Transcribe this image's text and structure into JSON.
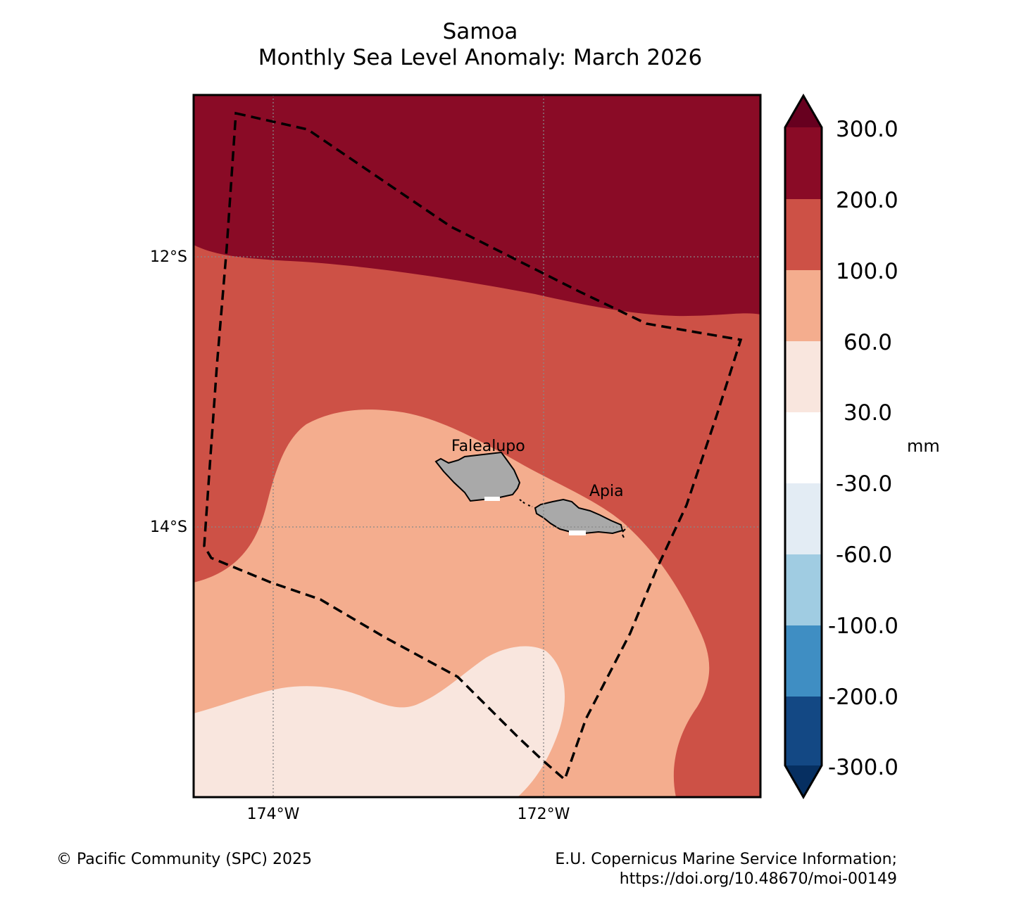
{
  "title": {
    "line1": "Samoa",
    "line2": "Monthly Sea Level Anomaly: March 2026"
  },
  "map": {
    "lat_labels": [
      "12°S",
      "14°S"
    ],
    "lon_labels": [
      "174°W",
      "172°W"
    ],
    "places": [
      {
        "name": "Falealupo"
      },
      {
        "name": "Apia"
      }
    ],
    "land_color": "#a9a9a9",
    "contour_levels_present": [
      "200-300",
      "100-200",
      "60-100",
      "30-60",
      "-30-30"
    ]
  },
  "colorbar": {
    "unit": "mm",
    "ticks": [
      "300.0",
      "200.0",
      "100.0",
      "60.0",
      "30.0",
      "-30.0",
      "-60.0",
      "-100.0",
      "-200.0",
      "-300.0"
    ],
    "colors": {
      "over": "#67001f",
      "200_300": "#8a0b26",
      "100_200": "#cd5146",
      "60_100": "#f4ad8e",
      "30_60": "#f9e6de",
      "neg30_30": "#ffffff",
      "neg60_neg30": "#e3ecf4",
      "neg100_neg60": "#a0cce2",
      "neg200_neg100": "#3f8ec3",
      "neg300_neg200": "#134884",
      "under": "#062f61"
    }
  },
  "footer": {
    "left": "© Pacific Community (SPC) 2025",
    "right_line1": "E.U. Copernicus Marine Service Information;",
    "right_line2": "https://doi.org/10.48670/moi-00149"
  }
}
